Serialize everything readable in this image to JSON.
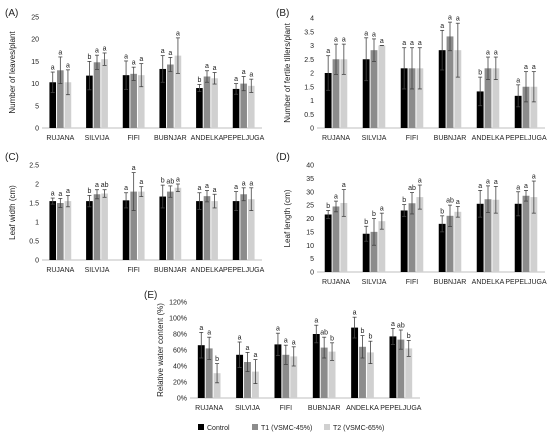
{
  "colors": {
    "Control": "#000000",
    "T1 (VSMC-45%)": "#8c8c8c",
    "T2 (VSMC-65%)": "#d0d0d0",
    "axis": "#bfbfbf",
    "text": "#222222"
  },
  "legend": {
    "placement": "bottom",
    "entries": [
      "Control",
      "T1 (VSMC-45%)",
      "T2 (VSMC-65%)"
    ]
  },
  "chart_data": [
    {
      "panel": "(A)",
      "type": "bar",
      "ylabel": "Number of leaves/plant",
      "categories": [
        "RUJANA",
        "SILVIJA",
        "FIFI",
        "BUBNJAR",
        "ANDELKA",
        "PEPELJUGA"
      ],
      "ylim": [
        0,
        25
      ],
      "yticks": [
        0,
        5,
        10,
        15,
        20,
        25
      ],
      "series": [
        {
          "name": "Control",
          "values": [
            10.3,
            11.8,
            11.9,
            13.3,
            9.0,
            8.8
          ],
          "err": [
            2.3,
            3.2,
            3.2,
            3.0,
            0.8,
            1.2
          ],
          "labels": [
            "a",
            "b",
            "a",
            "a",
            "b",
            "a"
          ]
        },
        {
          "name": "T1 (VSMC-45%)",
          "values": [
            13.0,
            14.8,
            12.2,
            14.3,
            11.6,
            10.0
          ],
          "err": [
            3.0,
            1.6,
            1.5,
            1.6,
            1.3,
            1.6
          ],
          "labels": [
            "a",
            "a",
            "a",
            "a",
            "a",
            "a"
          ]
        },
        {
          "name": "T2 (VSMC-65%)",
          "values": [
            10.3,
            15.5,
            11.9,
            16.3,
            11.2,
            9.5
          ],
          "err": [
            2.8,
            1.4,
            2.6,
            4.0,
            1.3,
            1.5
          ],
          "labels": [
            "a",
            "a",
            "a",
            "a",
            "a",
            "a"
          ]
        }
      ]
    },
    {
      "panel": "(B)",
      "type": "bar",
      "ylabel": "Number of fertile tillers/plant",
      "categories": [
        "RUJANA",
        "SILVIJA",
        "FIFI",
        "BUBNJAR",
        "ANDELKA",
        "PEPELJUGA"
      ],
      "ylim": [
        0,
        4
      ],
      "yticks": [
        0,
        0.5,
        1,
        1.5,
        2,
        2.5,
        3,
        3.5,
        4
      ],
      "series": [
        {
          "name": "Control",
          "values": [
            2.0,
            2.5,
            2.17,
            2.83,
            1.33,
            1.17
          ],
          "err": [
            0.63,
            0.78,
            0.75,
            0.72,
            0.52,
            0.4
          ],
          "labels": [
            "a",
            "a",
            "a",
            "a",
            "b",
            "a"
          ]
        },
        {
          "name": "T1 (VSMC-45%)",
          "values": [
            2.5,
            2.83,
            2.17,
            3.33,
            2.17,
            1.5
          ],
          "err": [
            0.55,
            0.41,
            0.75,
            0.52,
            0.41,
            0.55
          ],
          "labels": [
            "a",
            "a",
            "a",
            "a",
            "a",
            "a"
          ]
        },
        {
          "name": "T2 (VSMC-65%)",
          "values": [
            2.5,
            3.0,
            2.17,
            2.83,
            2.17,
            1.5
          ],
          "err": [
            0.55,
            0.0,
            0.75,
            0.98,
            0.41,
            0.55
          ],
          "labels": [
            "a",
            "a",
            "a",
            "a",
            "a",
            "a"
          ]
        }
      ]
    },
    {
      "panel": "(C)",
      "type": "bar",
      "ylabel": "Leaf width (cm)",
      "categories": [
        "RUJANA",
        "SILVIJA",
        "FIFI",
        "BUBNJAR",
        "ANDELKA",
        "PEPELJUGA"
      ],
      "ylim": [
        0,
        2.5
      ],
      "yticks": [
        0,
        0.5,
        1,
        1.5,
        2,
        2.5
      ],
      "series": [
        {
          "name": "Control",
          "values": [
            1.55,
            1.55,
            1.57,
            1.67,
            1.55,
            1.55
          ],
          "err": [
            0.08,
            0.15,
            0.2,
            0.3,
            0.22,
            0.25
          ],
          "labels": [
            "a",
            "b",
            "a",
            "b",
            "a",
            "a"
          ]
        },
        {
          "name": "T1 (VSMC-45%)",
          "values": [
            1.5,
            1.73,
            1.8,
            1.8,
            1.68,
            1.73
          ],
          "err": [
            0.12,
            0.12,
            0.5,
            0.15,
            0.15,
            0.17
          ],
          "labels": [
            "a",
            "a",
            "a",
            "ab",
            "a",
            "a"
          ]
        },
        {
          "name": "T2 (VSMC-65%)",
          "values": [
            1.55,
            1.75,
            1.8,
            1.9,
            1.55,
            1.6
          ],
          "err": [
            0.15,
            0.1,
            0.13,
            0.1,
            0.18,
            0.3
          ],
          "labels": [
            "a",
            "ab",
            "a",
            "a",
            "a",
            "a"
          ]
        }
      ]
    },
    {
      "panel": "(D)",
      "type": "bar",
      "ylabel": "Leaf length  (cm)",
      "categories": [
        "RUJANA",
        "SILVIJA",
        "FIFI",
        "BUBNJAR",
        "ANDELKA",
        "PEPELJUGA"
      ],
      "ylim": [
        0,
        40
      ],
      "yticks": [
        0,
        5,
        10,
        15,
        20,
        25,
        30,
        35,
        40
      ],
      "series": [
        {
          "name": "Control",
          "values": [
            21.5,
            14.3,
            23.0,
            18.0,
            25.5,
            25.5
          ],
          "err": [
            1.5,
            2.8,
            2.2,
            3.0,
            5.0,
            4.5
          ],
          "labels": [
            "b",
            "b",
            "b",
            "b",
            "a",
            "a"
          ]
        },
        {
          "name": "T1 (VSMC-45%)",
          "values": [
            24.5,
            15.0,
            25.7,
            21.0,
            27.2,
            28.5
          ],
          "err": [
            2.0,
            5.0,
            4.0,
            4.0,
            5.0,
            2.0
          ],
          "labels": [
            "a",
            "b",
            "ab",
            "ab",
            "a",
            "a"
          ]
        },
        {
          "name": "T2 (VSMC-65%)",
          "values": [
            25.8,
            19.0,
            28.0,
            22.5,
            27.0,
            28.0
          ],
          "err": [
            5.0,
            3.0,
            4.5,
            2.0,
            5.0,
            6.0
          ],
          "labels": [
            "a",
            "a",
            "a",
            "a",
            "a",
            "a"
          ]
        }
      ]
    },
    {
      "panel": "(E)",
      "type": "bar",
      "ylabel": "Relative water content (%)",
      "categories": [
        "RUJANA",
        "SILVIJA",
        "FIFI",
        "BUBNJAR",
        "ANDELKA",
        "PEPELJUGA"
      ],
      "ylim": [
        0,
        120
      ],
      "yticks": [
        "0%",
        "20%",
        "40%",
        "60%",
        "80%",
        "100%",
        "120%"
      ],
      "series": [
        {
          "name": "Control",
          "values": [
            66,
            54,
            67,
            80,
            88,
            77
          ],
          "err": [
            16,
            16,
            14,
            11,
            13,
            10
          ],
          "labels": [
            "a",
            "a",
            "a",
            "a",
            "a",
            "a"
          ]
        },
        {
          "name": "T1 (VSMC-45%)",
          "values": [
            62,
            45,
            54,
            63,
            64,
            73
          ],
          "err": [
            14,
            12,
            12,
            13,
            14,
            12
          ],
          "labels": [
            "a",
            "a",
            "a",
            "ab",
            "b",
            "ab"
          ]
        },
        {
          "name": "T2 (VSMC-65%)",
          "values": [
            31,
            33,
            52,
            58,
            57,
            62
          ],
          "err": [
            12,
            15,
            12,
            11,
            14,
            10
          ],
          "labels": [
            "b",
            "a",
            "a",
            "b",
            "b",
            "b"
          ]
        }
      ]
    }
  ]
}
